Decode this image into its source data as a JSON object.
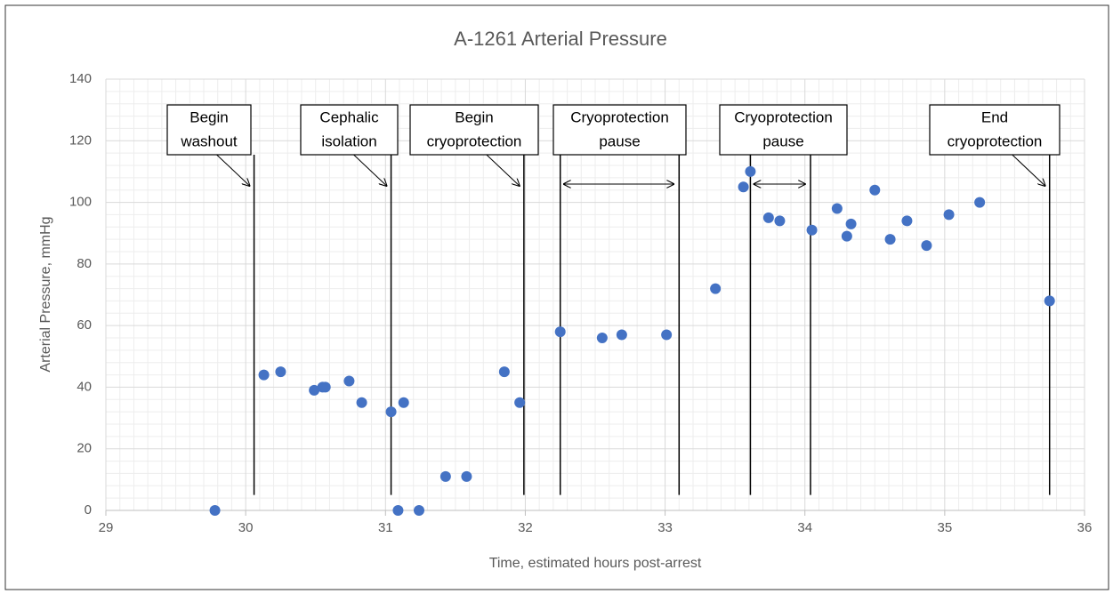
{
  "chart_data": {
    "type": "scatter",
    "title": "A-1261 Arterial Pressure",
    "x_label": "Time, estimated hours post-arrest",
    "y_label": "Arterial Pressure, mmHg",
    "x": [
      29.78,
      30.13,
      30.25,
      30.49,
      30.55,
      30.57,
      30.74,
      30.83,
      31.04,
      31.09,
      31.13,
      31.24,
      31.43,
      31.58,
      31.85,
      31.96,
      32.25,
      32.55,
      32.69,
      33.01,
      33.36,
      33.56,
      33.61,
      33.74,
      33.82,
      34.05,
      34.23,
      34.3,
      34.33,
      34.5,
      34.61,
      34.73,
      34.87,
      35.03,
      35.25,
      35.75
    ],
    "values": [
      0,
      44,
      45,
      39,
      40,
      40,
      42,
      35,
      32,
      0,
      35,
      0,
      11,
      11,
      45,
      35,
      58,
      56,
      57,
      57,
      72,
      105,
      110,
      95,
      94,
      91,
      98,
      89,
      93,
      104,
      88,
      94,
      86,
      96,
      100,
      68
    ],
    "color": "#4472c4",
    "xlim": [
      29,
      36
    ],
    "ylim": [
      0,
      140
    ],
    "xticks": [
      29,
      30,
      31,
      32,
      33,
      34,
      35,
      36
    ],
    "yticks": [
      0,
      20,
      40,
      60,
      80,
      100,
      120,
      140
    ],
    "grid": true,
    "annotations": [
      {
        "label": [
          "Begin",
          "washout"
        ],
        "x": [
          30.06
        ]
      },
      {
        "label": [
          "Cephalic",
          "isolation"
        ],
        "x": [
          31.04
        ]
      },
      {
        "label": [
          "Begin",
          "cryoprotection"
        ],
        "x": [
          31.99
        ]
      },
      {
        "label": [
          "Cryoprotection",
          "pause"
        ],
        "x": [
          32.25,
          33.1
        ]
      },
      {
        "label": [
          "Cryoprotection",
          "pause"
        ],
        "x": [
          33.61,
          34.04
        ]
      },
      {
        "label": [
          "End",
          "cryoprotection"
        ],
        "x": [
          35.75
        ]
      }
    ]
  }
}
